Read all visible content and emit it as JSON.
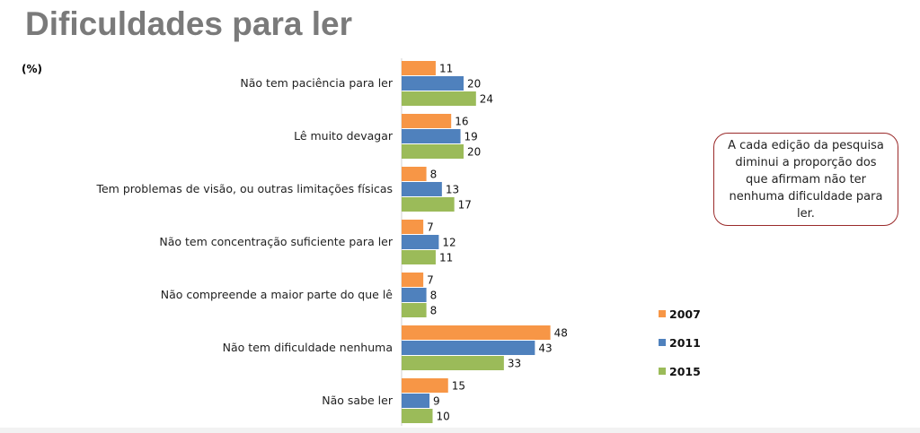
{
  "title": "Dificuldades para ler",
  "unit_label": "(%)",
  "note": "A cada edição da pesquisa diminui a proporção dos que afirmam não ter nenhuma dificuldade para ler.",
  "chart_data": {
    "type": "bar",
    "orientation": "horizontal",
    "categories": [
      "Não tem paciência para ler",
      "Lê muito devagar",
      "Tem problemas de visão, ou outras limitações físicas",
      "Não tem concentração suficiente para ler",
      "Não compreende a maior parte do que lê",
      "Não tem dificuldade nenhuma",
      "Não sabe ler"
    ],
    "series": [
      {
        "name": "2007",
        "color": "#f79646",
        "values": [
          11,
          16,
          8,
          7,
          7,
          48,
          15
        ]
      },
      {
        "name": "2011",
        "color": "#4f81bd",
        "values": [
          20,
          19,
          13,
          12,
          8,
          43,
          9
        ]
      },
      {
        "name": "2015",
        "color": "#9bbb59",
        "values": [
          24,
          20,
          17,
          11,
          8,
          33,
          10
        ]
      }
    ],
    "xlim": [
      0,
      48
    ],
    "grid": false,
    "legend_position": "right"
  }
}
